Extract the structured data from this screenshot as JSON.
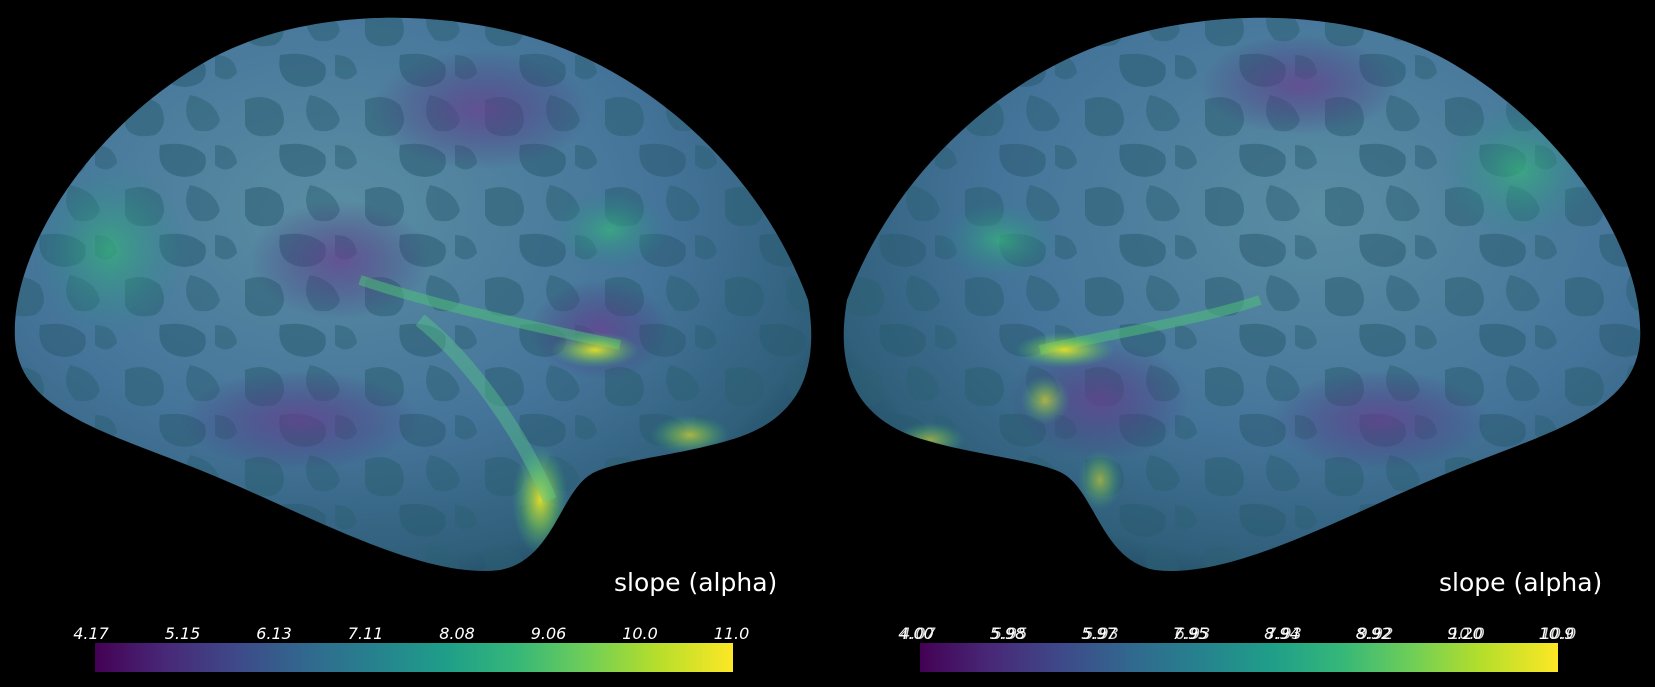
{
  "colormap": {
    "name": "viridis",
    "stops": [
      "#440154",
      "#482878",
      "#3e4989",
      "#31688e",
      "#26828e",
      "#1f9e89",
      "#35b779",
      "#6ece58",
      "#b5de2b",
      "#fde725"
    ]
  },
  "left_panel": {
    "colorbar_title": "slope (alpha)",
    "ticks": [
      "4.17",
      "5.15",
      "6.13",
      "7.11",
      "8.08",
      "9.06",
      "10.0",
      "11.0"
    ]
  },
  "right_panel": {
    "colorbar_title": "slope (alpha)",
    "ticks": [
      "4.00",
      "5.98",
      "5.97",
      "7.95",
      "8.94",
      "8.92",
      "9.20",
      "10.9"
    ],
    "ghost_ticks": [
      "4.07",
      "5.95",
      "5.93",
      "6.93",
      "7.93",
      "9.92",
      "10.0",
      "10.0"
    ]
  }
}
